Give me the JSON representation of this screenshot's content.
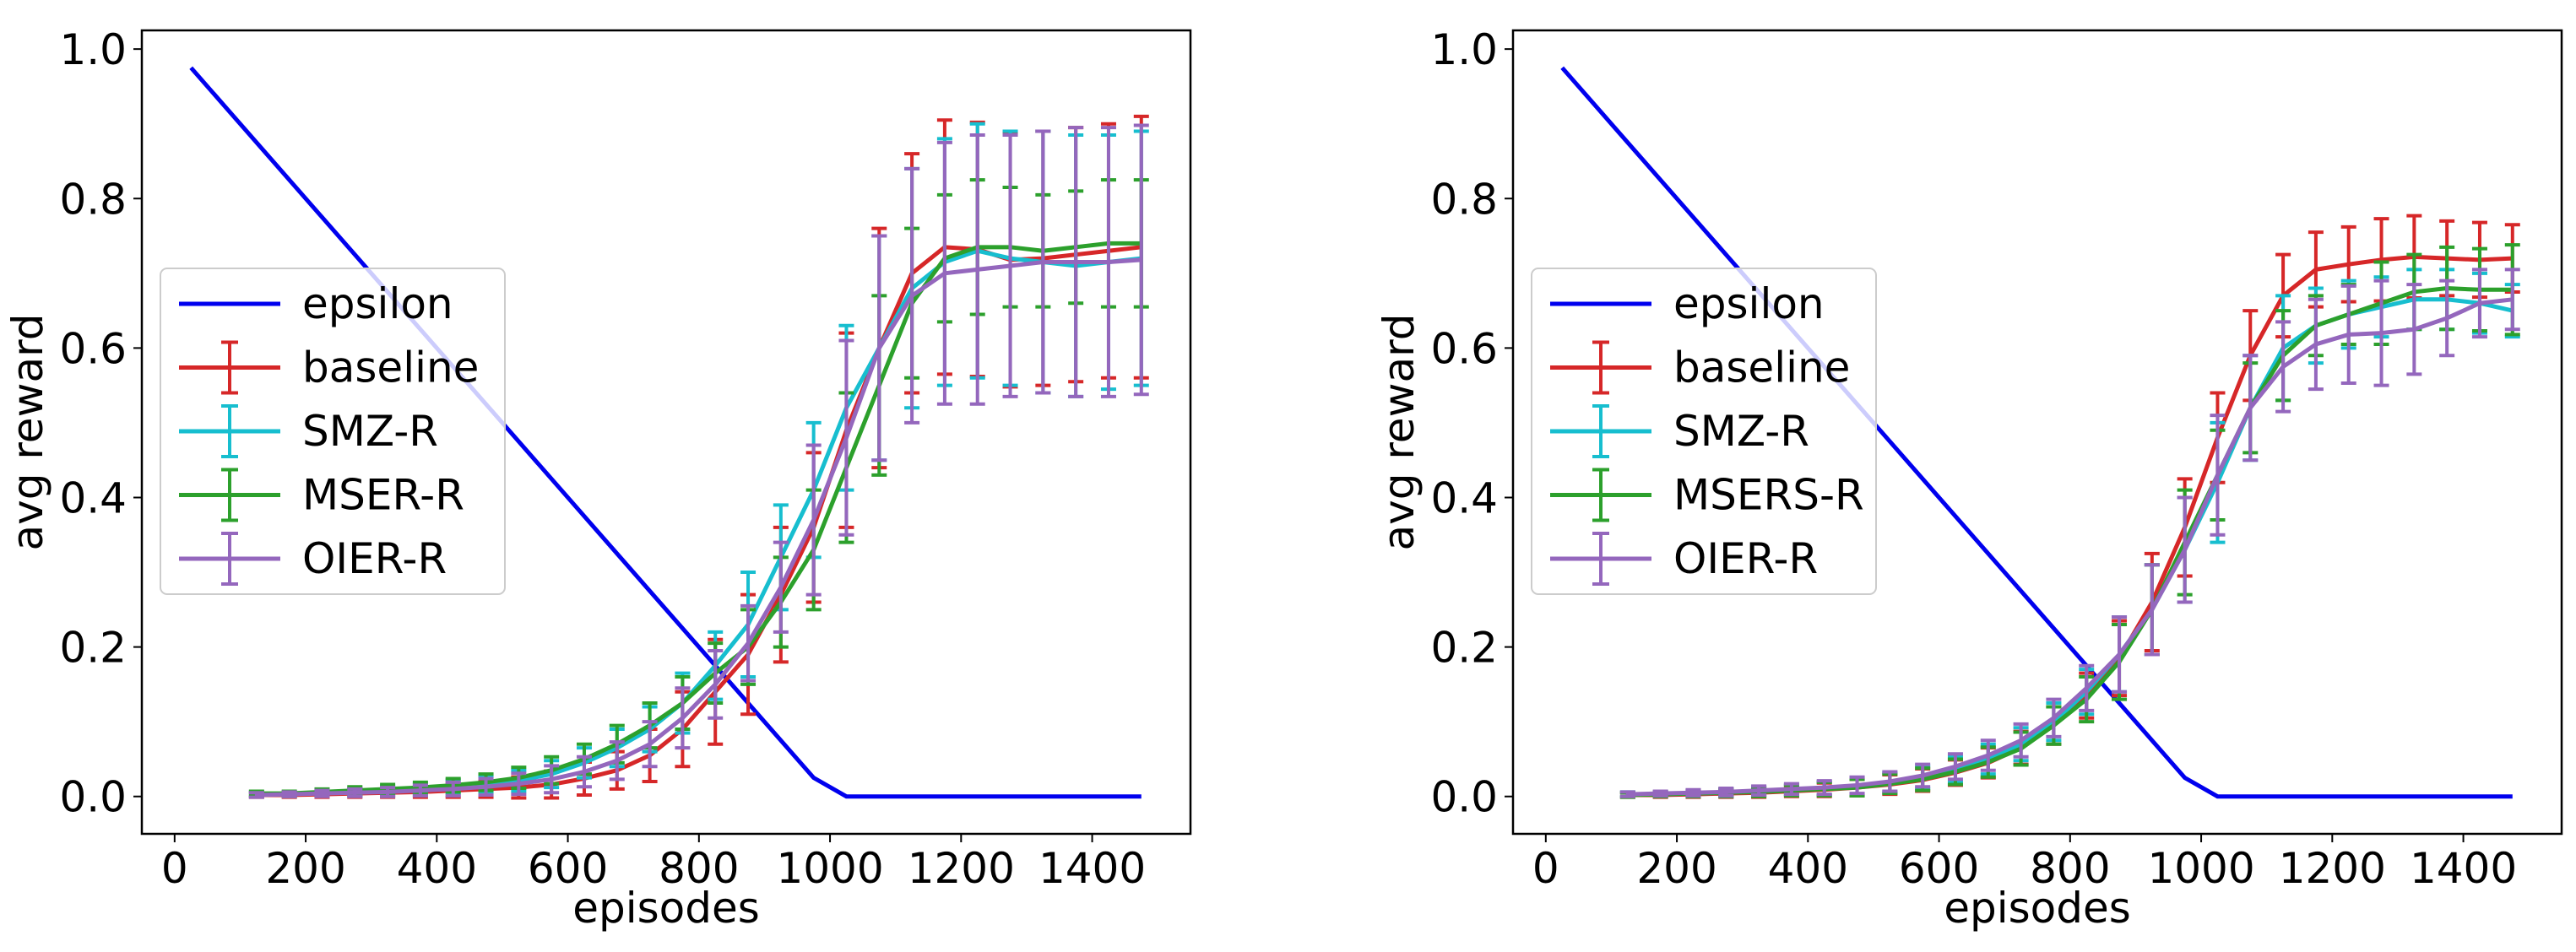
{
  "chart_data": [
    {
      "type": "line",
      "xlabel": "episodes",
      "ylabel": "avg reward",
      "xlim": [
        -50,
        1550
      ],
      "ylim": [
        -0.05,
        1.025
      ],
      "xticks": [
        0,
        200,
        400,
        600,
        800,
        1000,
        1200,
        1400
      ],
      "xtick_labels": [
        "0",
        "200",
        "400",
        "600",
        "800",
        "1000",
        "1200",
        "1400"
      ],
      "yticks": [
        0.0,
        0.2,
        0.4,
        0.6,
        0.8,
        1.0
      ],
      "ytick_labels": [
        "0.0",
        "0.2",
        "0.4",
        "0.6",
        "0.8",
        "1.0"
      ],
      "legend_position": "center-left",
      "epsilon": {
        "name": "epsilon",
        "color": "#0000ee",
        "x": [
          25,
          975,
          1025,
          1475
        ],
        "y": [
          0.975,
          0.025,
          0.0,
          0.0
        ]
      },
      "series": [
        {
          "name": "baseline",
          "color": "#d62728",
          "x": [
            125,
            175,
            225,
            275,
            325,
            375,
            425,
            475,
            525,
            575,
            625,
            675,
            725,
            775,
            825,
            875,
            925,
            975,
            1025,
            1075,
            1125,
            1175,
            1225,
            1275,
            1325,
            1375,
            1425,
            1475
          ],
          "y": [
            0.002,
            0.002,
            0.003,
            0.004,
            0.005,
            0.006,
            0.008,
            0.01,
            0.012,
            0.016,
            0.024,
            0.035,
            0.055,
            0.09,
            0.14,
            0.19,
            0.27,
            0.36,
            0.49,
            0.6,
            0.7,
            0.735,
            0.732,
            0.718,
            0.72,
            0.725,
            0.73,
            0.735
          ],
          "err": [
            0.003,
            0.003,
            0.004,
            0.005,
            0.006,
            0.007,
            0.009,
            0.011,
            0.014,
            0.018,
            0.022,
            0.025,
            0.035,
            0.05,
            0.07,
            0.08,
            0.09,
            0.1,
            0.13,
            0.16,
            0.16,
            0.17,
            0.17,
            0.17,
            0.17,
            0.17,
            0.17,
            0.175
          ]
        },
        {
          "name": "SMZ-R",
          "color": "#17becf",
          "x": [
            125,
            175,
            225,
            275,
            325,
            375,
            425,
            475,
            525,
            575,
            625,
            675,
            725,
            775,
            825,
            875,
            925,
            975,
            1025,
            1075,
            1125,
            1175,
            1225,
            1275,
            1325,
            1375,
            1425,
            1475
          ],
          "y": [
            0.003,
            0.003,
            0.005,
            0.006,
            0.008,
            0.01,
            0.013,
            0.016,
            0.021,
            0.03,
            0.045,
            0.065,
            0.09,
            0.125,
            0.175,
            0.23,
            0.32,
            0.41,
            0.52,
            0.6,
            0.68,
            0.715,
            0.73,
            0.72,
            0.715,
            0.71,
            0.715,
            0.72
          ],
          "err": [
            0.003,
            0.003,
            0.004,
            0.005,
            0.006,
            0.007,
            0.009,
            0.011,
            0.014,
            0.018,
            0.02,
            0.025,
            0.03,
            0.04,
            0.045,
            0.07,
            0.07,
            0.09,
            0.11,
            0.15,
            0.16,
            0.165,
            0.17,
            0.17,
            0.175,
            0.175,
            0.17,
            0.17
          ]
        },
        {
          "name": "MSER-R",
          "color": "#2ca02c",
          "x": [
            125,
            175,
            225,
            275,
            325,
            375,
            425,
            475,
            525,
            575,
            625,
            675,
            725,
            775,
            825,
            875,
            925,
            975,
            1025,
            1075,
            1125,
            1175,
            1225,
            1275,
            1325,
            1375,
            1425,
            1475
          ],
          "y": [
            0.004,
            0.004,
            0.006,
            0.008,
            0.01,
            0.012,
            0.015,
            0.019,
            0.025,
            0.035,
            0.05,
            0.07,
            0.095,
            0.125,
            0.165,
            0.2,
            0.26,
            0.33,
            0.44,
            0.55,
            0.66,
            0.72,
            0.735,
            0.735,
            0.73,
            0.735,
            0.74,
            0.74
          ],
          "err": [
            0.003,
            0.003,
            0.004,
            0.005,
            0.006,
            0.007,
            0.009,
            0.011,
            0.014,
            0.018,
            0.02,
            0.025,
            0.03,
            0.035,
            0.04,
            0.05,
            0.06,
            0.08,
            0.1,
            0.12,
            0.1,
            0.085,
            0.09,
            0.08,
            0.075,
            0.075,
            0.085,
            0.085
          ]
        },
        {
          "name": "OIER-R",
          "color": "#9467bd",
          "x": [
            125,
            175,
            225,
            275,
            325,
            375,
            425,
            475,
            525,
            575,
            625,
            675,
            725,
            775,
            825,
            875,
            925,
            975,
            1025,
            1075,
            1125,
            1175,
            1225,
            1275,
            1325,
            1375,
            1425,
            1475
          ],
          "y": [
            0.002,
            0.003,
            0.004,
            0.005,
            0.006,
            0.008,
            0.01,
            0.013,
            0.017,
            0.023,
            0.033,
            0.048,
            0.07,
            0.105,
            0.15,
            0.205,
            0.28,
            0.37,
            0.48,
            0.6,
            0.67,
            0.7,
            0.705,
            0.71,
            0.715,
            0.715,
            0.715,
            0.718
          ],
          "err": [
            0.003,
            0.003,
            0.004,
            0.005,
            0.006,
            0.007,
            0.009,
            0.011,
            0.014,
            0.018,
            0.02,
            0.025,
            0.03,
            0.04,
            0.045,
            0.05,
            0.06,
            0.1,
            0.13,
            0.15,
            0.17,
            0.175,
            0.18,
            0.175,
            0.175,
            0.18,
            0.18,
            0.18
          ]
        }
      ]
    },
    {
      "type": "line",
      "xlabel": "episodes",
      "ylabel": "avg reward",
      "xlim": [
        -50,
        1550
      ],
      "ylim": [
        -0.05,
        1.025
      ],
      "xticks": [
        0,
        200,
        400,
        600,
        800,
        1000,
        1200,
        1400
      ],
      "xtick_labels": [
        "0",
        "200",
        "400",
        "600",
        "800",
        "1000",
        "1200",
        "1400"
      ],
      "yticks": [
        0.0,
        0.2,
        0.4,
        0.6,
        0.8,
        1.0
      ],
      "ytick_labels": [
        "0.0",
        "0.2",
        "0.4",
        "0.6",
        "0.8",
        "1.0"
      ],
      "legend_position": "center-left",
      "epsilon": {
        "name": "epsilon",
        "color": "#0000ee",
        "x": [
          25,
          975,
          1025,
          1475
        ],
        "y": [
          0.975,
          0.025,
          0.0,
          0.0
        ]
      },
      "series": [
        {
          "name": "baseline",
          "color": "#d62728",
          "x": [
            125,
            175,
            225,
            275,
            325,
            375,
            425,
            475,
            525,
            575,
            625,
            675,
            725,
            775,
            825,
            875,
            925,
            975,
            1025,
            1075,
            1125,
            1175,
            1225,
            1275,
            1325,
            1375,
            1425,
            1475
          ],
          "y": [
            0.002,
            0.002,
            0.003,
            0.004,
            0.005,
            0.007,
            0.009,
            0.012,
            0.016,
            0.022,
            0.032,
            0.045,
            0.065,
            0.095,
            0.135,
            0.185,
            0.26,
            0.36,
            0.48,
            0.59,
            0.67,
            0.705,
            0.712,
            0.718,
            0.722,
            0.72,
            0.718,
            0.72
          ],
          "err": [
            0.003,
            0.003,
            0.004,
            0.005,
            0.006,
            0.007,
            0.009,
            0.011,
            0.013,
            0.015,
            0.017,
            0.02,
            0.022,
            0.025,
            0.03,
            0.05,
            0.065,
            0.065,
            0.06,
            0.06,
            0.055,
            0.05,
            0.05,
            0.055,
            0.055,
            0.05,
            0.05,
            0.045
          ]
        },
        {
          "name": "SMZ-R",
          "color": "#17becf",
          "x": [
            125,
            175,
            225,
            275,
            325,
            375,
            425,
            475,
            525,
            575,
            625,
            675,
            725,
            775,
            825,
            875,
            925,
            975,
            1025,
            1075,
            1125,
            1175,
            1225,
            1275,
            1325,
            1375,
            1425,
            1475
          ],
          "y": [
            0.003,
            0.003,
            0.004,
            0.005,
            0.007,
            0.009,
            0.011,
            0.014,
            0.019,
            0.026,
            0.036,
            0.05,
            0.07,
            0.1,
            0.14,
            0.19,
            0.25,
            0.33,
            0.42,
            0.52,
            0.6,
            0.63,
            0.645,
            0.655,
            0.665,
            0.665,
            0.66,
            0.65
          ],
          "err": [
            0.003,
            0.003,
            0.004,
            0.005,
            0.006,
            0.007,
            0.009,
            0.011,
            0.013,
            0.015,
            0.017,
            0.02,
            0.022,
            0.025,
            0.03,
            0.05,
            0.06,
            0.07,
            0.08,
            0.07,
            0.07,
            0.05,
            0.045,
            0.04,
            0.04,
            0.04,
            0.04,
            0.035
          ]
        },
        {
          "name": "MSERS-R",
          "color": "#2ca02c",
          "x": [
            125,
            175,
            225,
            275,
            325,
            375,
            425,
            475,
            525,
            575,
            625,
            675,
            725,
            775,
            825,
            875,
            925,
            975,
            1025,
            1075,
            1125,
            1175,
            1225,
            1275,
            1325,
            1375,
            1425,
            1475
          ],
          "y": [
            0.002,
            0.003,
            0.004,
            0.005,
            0.006,
            0.008,
            0.01,
            0.012,
            0.017,
            0.023,
            0.033,
            0.046,
            0.064,
            0.095,
            0.13,
            0.18,
            0.25,
            0.34,
            0.43,
            0.52,
            0.59,
            0.63,
            0.645,
            0.66,
            0.675,
            0.68,
            0.678,
            0.678
          ],
          "err": [
            0.003,
            0.003,
            0.004,
            0.005,
            0.006,
            0.007,
            0.009,
            0.011,
            0.013,
            0.015,
            0.017,
            0.02,
            0.022,
            0.025,
            0.03,
            0.05,
            0.06,
            0.07,
            0.06,
            0.06,
            0.06,
            0.04,
            0.04,
            0.055,
            0.05,
            0.055,
            0.055,
            0.06
          ]
        },
        {
          "name": "OIER-R",
          "color": "#9467bd",
          "x": [
            125,
            175,
            225,
            275,
            325,
            375,
            425,
            475,
            525,
            575,
            625,
            675,
            725,
            775,
            825,
            875,
            925,
            975,
            1025,
            1075,
            1125,
            1175,
            1225,
            1275,
            1325,
            1375,
            1425,
            1475
          ],
          "y": [
            0.003,
            0.004,
            0.005,
            0.006,
            0.008,
            0.01,
            0.012,
            0.015,
            0.02,
            0.028,
            0.04,
            0.055,
            0.075,
            0.105,
            0.145,
            0.19,
            0.25,
            0.33,
            0.43,
            0.52,
            0.575,
            0.605,
            0.618,
            0.62,
            0.625,
            0.64,
            0.66,
            0.665
          ],
          "err": [
            0.003,
            0.003,
            0.004,
            0.005,
            0.006,
            0.007,
            0.009,
            0.011,
            0.013,
            0.015,
            0.017,
            0.02,
            0.022,
            0.025,
            0.03,
            0.05,
            0.06,
            0.07,
            0.08,
            0.07,
            0.06,
            0.06,
            0.065,
            0.07,
            0.06,
            0.05,
            0.045,
            0.04
          ]
        }
      ]
    }
  ]
}
